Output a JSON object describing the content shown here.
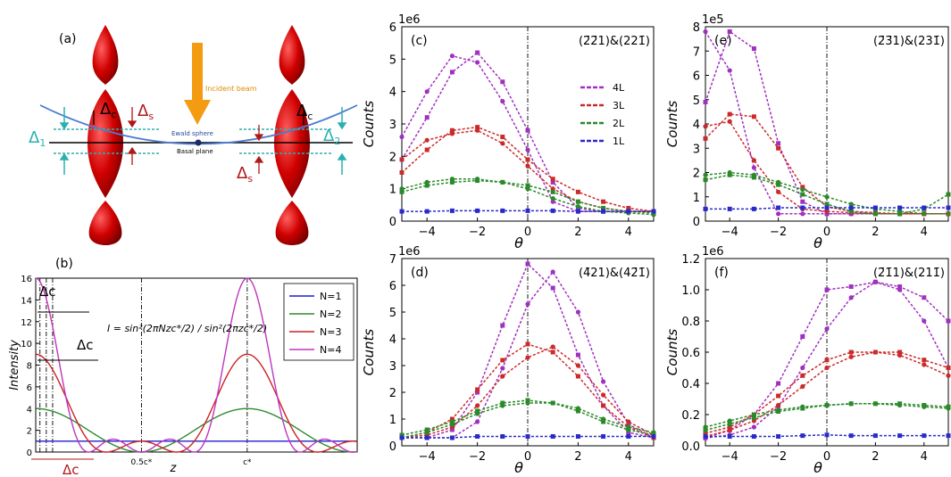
{
  "panel_a": {
    "label": "(a)",
    "incident_beam": "Incident beam",
    "ewald_sphere": "Ewald sphere",
    "basal_plane": "Basal plane",
    "delta_c": "Δ",
    "delta_c_sub": "c",
    "delta_s": "Δ",
    "delta_s_sub": "s",
    "delta_1": "Δ",
    "delta_1_sub": "1",
    "delta_2": "Δ",
    "delta_2_sub": "2"
  },
  "chart_data": [
    {
      "panel": "(b)",
      "type": "line",
      "xlabel": "z",
      "ylabel": "Intensity",
      "ylim": [
        0,
        16
      ],
      "yticks": [
        "0",
        "2",
        "4",
        "6",
        "8",
        "10",
        "12",
        "14",
        "16"
      ],
      "xtick_labels": [
        "0.5c*",
        "c*"
      ],
      "equation": "I = sin²(2πNzc*/2) / sin²(2πzc*/2)",
      "annotations": [
        "Δc",
        "Δc",
        "Δc"
      ],
      "legend": "top-right",
      "series": [
        {
          "name": "N=1",
          "N": 1,
          "color": "#1f1fd6"
        },
        {
          "name": "N=2",
          "N": 2,
          "color": "#2e8b2e"
        },
        {
          "name": "N=3",
          "N": 3,
          "color": "#cc2222"
        },
        {
          "name": "N=4",
          "N": 4,
          "color": "#bf35bf"
        }
      ]
    },
    {
      "panel": "(c)",
      "type": "line",
      "title": "(2̄2̄1)&(221̄)",
      "xlabel": "θ",
      "ylabel": "Counts",
      "multiplier": "1e6",
      "xlim": [
        -5,
        5
      ],
      "ylim": [
        0,
        6
      ],
      "xticks": [
        -4,
        -2,
        0,
        2,
        4
      ],
      "yticks": [
        0,
        1,
        2,
        3,
        4,
        5,
        6
      ],
      "legend": "center-right",
      "series": [
        {
          "name": "4L",
          "color": "#a030c0",
          "x": [
            -5,
            -4,
            -3,
            -2,
            -1,
            0,
            1,
            2,
            3,
            4,
            5
          ],
          "values": [
            1.9,
            3.2,
            4.6,
            5.2,
            4.3,
            2.8,
            1.2,
            0.4,
            0.3,
            0.3,
            0.3
          ]
        },
        {
          "name": "4L",
          "color": "#a030c0",
          "x": [
            -5,
            -4,
            -3,
            -2,
            -1,
            0,
            1,
            2,
            3,
            4,
            5
          ],
          "values": [
            2.6,
            4.0,
            5.1,
            4.9,
            3.7,
            2.2,
            0.6,
            0.3,
            0.3,
            0.3,
            0.3
          ]
        },
        {
          "name": "3L",
          "color": "#cc2a2a",
          "x": [
            -5,
            -4,
            -3,
            -2,
            -1,
            0,
            1,
            2,
            3,
            4,
            5
          ],
          "values": [
            1.5,
            2.2,
            2.8,
            2.9,
            2.6,
            1.9,
            1.3,
            0.9,
            0.6,
            0.4,
            0.3
          ]
        },
        {
          "name": "3L",
          "color": "#cc2a2a",
          "x": [
            -5,
            -4,
            -3,
            -2,
            -1,
            0,
            1,
            2,
            3,
            4,
            5
          ],
          "values": [
            1.9,
            2.5,
            2.7,
            2.8,
            2.4,
            1.7,
            1.0,
            0.6,
            0.4,
            0.3,
            0.3
          ]
        },
        {
          "name": "2L",
          "color": "#2a8a2a",
          "x": [
            -5,
            -4,
            -3,
            -2,
            -1,
            0,
            1,
            2,
            3,
            4,
            5
          ],
          "values": [
            0.9,
            1.1,
            1.2,
            1.25,
            1.2,
            1.1,
            0.9,
            0.6,
            0.4,
            0.3,
            0.25
          ]
        },
        {
          "name": "2L",
          "color": "#2a8a2a",
          "x": [
            -5,
            -4,
            -3,
            -2,
            -1,
            0,
            1,
            2,
            3,
            4,
            5
          ],
          "values": [
            1.0,
            1.2,
            1.3,
            1.3,
            1.2,
            1.0,
            0.7,
            0.45,
            0.3,
            0.25,
            0.2
          ]
        },
        {
          "name": "1L",
          "color": "#2a2acc",
          "x": [
            -5,
            -4,
            -3,
            -2,
            -1,
            0,
            1,
            2,
            3,
            4,
            5
          ],
          "values": [
            0.3,
            0.3,
            0.32,
            0.32,
            0.32,
            0.32,
            0.32,
            0.3,
            0.3,
            0.3,
            0.3
          ]
        }
      ]
    },
    {
      "panel": "(e)",
      "type": "line",
      "title": "(2̄3̄1)&(231̄)",
      "xlabel": "θ",
      "ylabel": "Counts",
      "multiplier": "1e5",
      "xlim": [
        -5,
        5
      ],
      "ylim": [
        0,
        8
      ],
      "xticks": [
        -4,
        -2,
        0,
        2,
        4
      ],
      "yticks": [
        0,
        1,
        2,
        3,
        4,
        5,
        6,
        7,
        8
      ],
      "series": [
        {
          "name": "4L",
          "color": "#a030c0",
          "x": [
            -5,
            -4,
            -3,
            -2,
            -1,
            0,
            1,
            2,
            3,
            4,
            5
          ],
          "values": [
            4.9,
            7.8,
            7.1,
            3.2,
            0.8,
            0.3,
            0.3,
            0.3,
            0.3,
            0.3,
            0.3
          ]
        },
        {
          "name": "4L",
          "color": "#a030c0",
          "x": [
            -5,
            -4,
            -3,
            -2,
            -1,
            0,
            1,
            2,
            3,
            4,
            5
          ],
          "values": [
            7.8,
            6.2,
            2.2,
            0.3,
            0.3,
            0.3,
            0.3,
            0.3,
            0.3,
            0.3,
            0.3
          ]
        },
        {
          "name": "3L",
          "color": "#cc2a2a",
          "x": [
            -5,
            -4,
            -3,
            -2,
            -1,
            0,
            1,
            2,
            3,
            4,
            5
          ],
          "values": [
            3.4,
            4.4,
            4.3,
            3.0,
            1.4,
            0.6,
            0.4,
            0.35,
            0.3,
            0.3,
            0.3
          ]
        },
        {
          "name": "3L",
          "color": "#cc2a2a",
          "x": [
            -5,
            -4,
            -3,
            -2,
            -1,
            0,
            1,
            2,
            3,
            4,
            5
          ],
          "values": [
            3.9,
            4.1,
            2.5,
            1.2,
            0.5,
            0.4,
            0.35,
            0.3,
            0.3,
            0.3,
            0.3
          ]
        },
        {
          "name": "2L",
          "color": "#2a8a2a",
          "x": [
            -5,
            -4,
            -3,
            -2,
            -1,
            0,
            1,
            2,
            3,
            4,
            5
          ],
          "values": [
            1.7,
            1.9,
            1.8,
            1.5,
            1.1,
            0.7,
            0.4,
            0.3,
            0.3,
            0.5,
            1.1
          ]
        },
        {
          "name": "2L",
          "color": "#2a8a2a",
          "x": [
            -5,
            -4,
            -3,
            -2,
            -1,
            0,
            1,
            2,
            3,
            4,
            5
          ],
          "values": [
            1.9,
            2.0,
            1.9,
            1.6,
            1.3,
            1.0,
            0.7,
            0.5,
            0.4,
            0.3,
            0.3
          ]
        },
        {
          "name": "1L",
          "color": "#2a2acc",
          "x": [
            -5,
            -4,
            -3,
            -2,
            -1,
            0,
            1,
            2,
            3,
            4,
            5
          ],
          "values": [
            0.5,
            0.5,
            0.5,
            0.55,
            0.55,
            0.55,
            0.55,
            0.55,
            0.55,
            0.55,
            0.55
          ]
        }
      ]
    },
    {
      "panel": "(d)",
      "type": "line",
      "title": "(4̄21)&(42̄1̄)",
      "xlabel": "θ",
      "ylabel": "Counts",
      "multiplier": "1e6",
      "xlim": [
        -5,
        5
      ],
      "ylim": [
        0,
        7
      ],
      "xticks": [
        -4,
        -2,
        0,
        2,
        4
      ],
      "yticks": [
        0,
        1,
        2,
        3,
        4,
        5,
        6,
        7
      ],
      "series": [
        {
          "name": "4L",
          "color": "#a030c0",
          "x": [
            -5,
            -4,
            -3,
            -2,
            -1,
            0,
            1,
            2,
            3,
            4,
            5
          ],
          "values": [
            0.3,
            0.3,
            0.6,
            2.0,
            4.5,
            6.8,
            5.9,
            3.4,
            1.5,
            0.5,
            0.3
          ]
        },
        {
          "name": "4L",
          "color": "#a030c0",
          "x": [
            -5,
            -4,
            -3,
            -2,
            -1,
            0,
            1,
            2,
            3,
            4,
            5
          ],
          "values": [
            0.3,
            0.3,
            0.3,
            0.9,
            2.9,
            5.3,
            6.5,
            5.0,
            2.4,
            0.8,
            0.3
          ]
        },
        {
          "name": "3L",
          "color": "#cc2a2a",
          "x": [
            -5,
            -4,
            -3,
            -2,
            -1,
            0,
            1,
            2,
            3,
            4,
            5
          ],
          "values": [
            0.3,
            0.5,
            1.0,
            2.1,
            3.2,
            3.8,
            3.5,
            2.6,
            1.5,
            0.7,
            0.3
          ]
        },
        {
          "name": "3L",
          "color": "#cc2a2a",
          "x": [
            -5,
            -4,
            -3,
            -2,
            -1,
            0,
            1,
            2,
            3,
            4,
            5
          ],
          "values": [
            0.3,
            0.4,
            0.7,
            1.5,
            2.6,
            3.3,
            3.7,
            3.0,
            1.9,
            0.9,
            0.4
          ]
        },
        {
          "name": "2L",
          "color": "#2a8a2a",
          "x": [
            -5,
            -4,
            -3,
            -2,
            -1,
            0,
            1,
            2,
            3,
            4,
            5
          ],
          "values": [
            0.4,
            0.6,
            0.9,
            1.3,
            1.6,
            1.7,
            1.6,
            1.3,
            0.9,
            0.6,
            0.4
          ]
        },
        {
          "name": "2L",
          "color": "#2a8a2a",
          "x": [
            -5,
            -4,
            -3,
            -2,
            -1,
            0,
            1,
            2,
            3,
            4,
            5
          ],
          "values": [
            0.3,
            0.5,
            0.8,
            1.2,
            1.5,
            1.6,
            1.6,
            1.4,
            1.0,
            0.7,
            0.5
          ]
        },
        {
          "name": "1L",
          "color": "#2a2acc",
          "x": [
            -5,
            -4,
            -3,
            -2,
            -1,
            0,
            1,
            2,
            3,
            4,
            5
          ],
          "values": [
            0.3,
            0.3,
            0.3,
            0.35,
            0.35,
            0.35,
            0.35,
            0.35,
            0.35,
            0.35,
            0.35
          ]
        }
      ]
    },
    {
      "panel": "(f)",
      "type": "line",
      "title": "(2̄1̄1)&(211̄)",
      "xlabel": "θ",
      "ylabel": "Counts",
      "multiplier": "1e6",
      "xlim": [
        -5,
        5
      ],
      "ylim": [
        0,
        1.2
      ],
      "xticks": [
        -4,
        -2,
        0,
        2,
        4
      ],
      "yticks": [
        0.0,
        0.2,
        0.4,
        0.6,
        0.8,
        1.0,
        1.2
      ],
      "series": [
        {
          "name": "4L",
          "color": "#a030c0",
          "x": [
            -5,
            -4,
            -3,
            -2,
            -1,
            0,
            1,
            2,
            3,
            4,
            5
          ],
          "values": [
            0.05,
            0.1,
            0.2,
            0.4,
            0.7,
            1.0,
            1.02,
            1.05,
            1.02,
            0.95,
            0.8
          ]
        },
        {
          "name": "4L",
          "color": "#a030c0",
          "x": [
            -5,
            -4,
            -3,
            -2,
            -1,
            0,
            1,
            2,
            3,
            4,
            5
          ],
          "values": [
            0.05,
            0.07,
            0.12,
            0.25,
            0.5,
            0.75,
            0.95,
            1.05,
            1.0,
            0.8,
            0.5
          ]
        },
        {
          "name": "3L",
          "color": "#cc2a2a",
          "x": [
            -5,
            -4,
            -3,
            -2,
            -1,
            0,
            1,
            2,
            3,
            4,
            5
          ],
          "values": [
            0.08,
            0.12,
            0.2,
            0.32,
            0.45,
            0.55,
            0.6,
            0.6,
            0.6,
            0.55,
            0.5
          ]
        },
        {
          "name": "3L",
          "color": "#cc2a2a",
          "x": [
            -5,
            -4,
            -3,
            -2,
            -1,
            0,
            1,
            2,
            3,
            4,
            5
          ],
          "values": [
            0.06,
            0.1,
            0.16,
            0.26,
            0.38,
            0.5,
            0.57,
            0.6,
            0.58,
            0.52,
            0.45
          ]
        },
        {
          "name": "2L",
          "color": "#2a8a2a",
          "x": [
            -5,
            -4,
            -3,
            -2,
            -1,
            0,
            1,
            2,
            3,
            4,
            5
          ],
          "values": [
            0.1,
            0.14,
            0.18,
            0.22,
            0.24,
            0.26,
            0.27,
            0.27,
            0.27,
            0.26,
            0.25
          ]
        },
        {
          "name": "2L",
          "color": "#2a8a2a",
          "x": [
            -5,
            -4,
            -3,
            -2,
            -1,
            0,
            1,
            2,
            3,
            4,
            5
          ],
          "values": [
            0.12,
            0.16,
            0.2,
            0.23,
            0.25,
            0.26,
            0.27,
            0.27,
            0.26,
            0.25,
            0.24
          ]
        },
        {
          "name": "1L",
          "color": "#2a2acc",
          "x": [
            -5,
            -4,
            -3,
            -2,
            -1,
            0,
            1,
            2,
            3,
            4,
            5
          ],
          "values": [
            0.06,
            0.06,
            0.06,
            0.06,
            0.065,
            0.07,
            0.065,
            0.065,
            0.065,
            0.065,
            0.065
          ]
        }
      ]
    }
  ]
}
